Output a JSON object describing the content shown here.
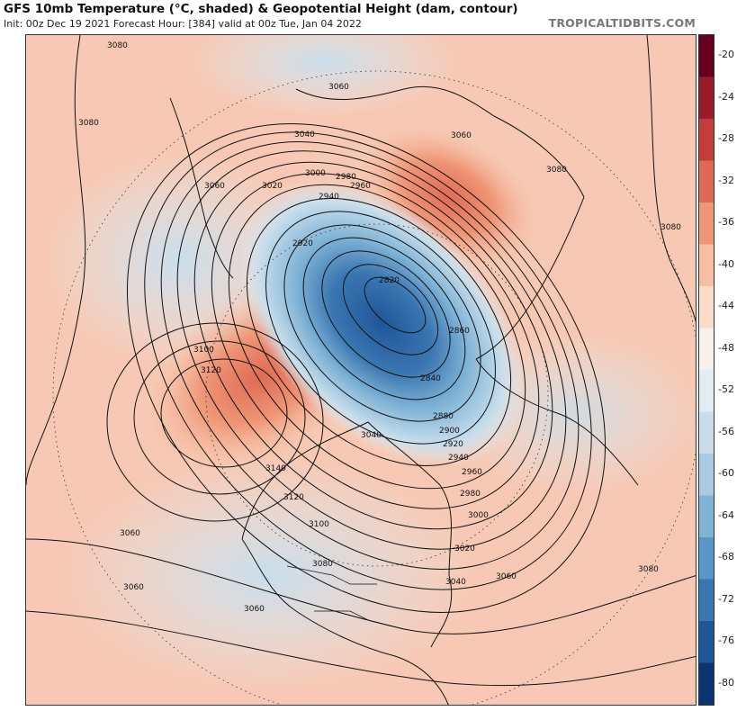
{
  "header": {
    "title": "GFS 10mb Temperature (°C, shaded) & Geopotential Height (dam, contour)",
    "subtitle": "Init: 00z Dec 19 2021   Forecast Hour: [384]   valid at 00z Tue, Jan 04 2022",
    "brand": "TROPICALTIDBITS.COM"
  },
  "colorbar": {
    "labels": [
      "-20",
      "-24",
      "-28",
      "-32",
      "-36",
      "-40",
      "-44",
      "-48",
      "-52",
      "-56",
      "-60",
      "-64",
      "-68",
      "-72",
      "-76",
      "-80"
    ],
    "colors": [
      "#67001f",
      "#9a1c2c",
      "#c43c3c",
      "#de6a55",
      "#ef9677",
      "#f7bea3",
      "#fadcc9",
      "#f7f1ee",
      "#e2ecf3",
      "#c8deec",
      "#a8cbe3",
      "#80b3d6",
      "#5a96c6",
      "#3a76b1",
      "#1f5698",
      "#0b3570"
    ]
  },
  "contours": {
    "labels": [
      "3080",
      "3060",
      "3080",
      "3040",
      "3060",
      "3060",
      "3020",
      "3000",
      "2980",
      "2960",
      "2940",
      "2920",
      "2820",
      "3080",
      "2860",
      "3080",
      "3100",
      "3120",
      "2840",
      "2880",
      "2900",
      "2920",
      "2940",
      "3040",
      "3140",
      "2960",
      "2980",
      "3120",
      "3000",
      "3100",
      "3060",
      "3080",
      "3020",
      "3040",
      "3060",
      "3060",
      "3060",
      "3080"
    ]
  }
}
